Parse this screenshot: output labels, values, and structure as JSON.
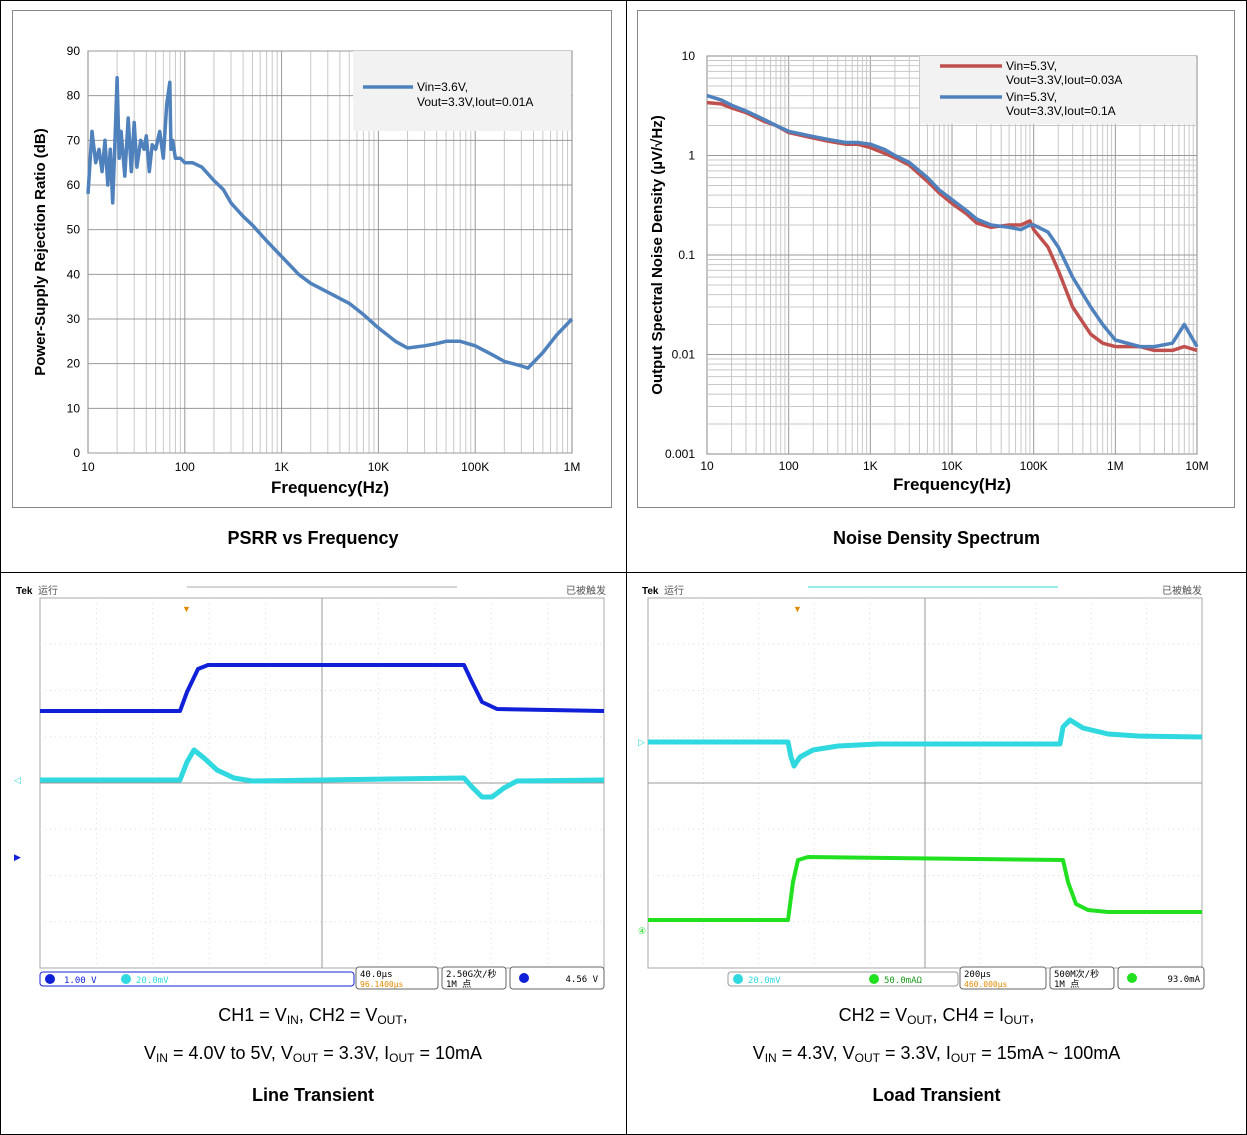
{
  "psrr": {
    "caption": "PSRR vs Frequency",
    "chart_data": {
      "type": "line",
      "ylabel": "Power-Supply Rejection Ratio (dB)",
      "xlabel": "Frequency(Hz)",
      "xscale": "log",
      "xlim": [
        10,
        1000000
      ],
      "ylim": [
        0,
        90
      ],
      "yticks": [
        "0",
        "10",
        "20",
        "30",
        "40",
        "50",
        "60",
        "70",
        "80",
        "90"
      ],
      "xticks": [
        "10",
        "100",
        "1K",
        "10K",
        "100K",
        "1M"
      ],
      "grid": true,
      "legend_position": "top-right",
      "series": [
        {
          "name": "Vin=3.6V, Vout=3.3V,Iout=0.01A",
          "legend_line1": "Vin=3.6V,",
          "legend_line2": "Vout=3.3V,Iout=0.01A",
          "color": "#4f81bd",
          "x": [
            10,
            11,
            12,
            13,
            14,
            15,
            16,
            17,
            18,
            19,
            20,
            21,
            22,
            24,
            26,
            28,
            30,
            32,
            35,
            38,
            40,
            43,
            46,
            50,
            55,
            60,
            65,
            70,
            72,
            75,
            80,
            90,
            100,
            120,
            150,
            200,
            250,
            300,
            400,
            500,
            700,
            1000,
            1500,
            2000,
            3000,
            5000,
            7000,
            10000,
            15000,
            20000,
            30000,
            40000,
            50000,
            70000,
            100000,
            150000,
            200000,
            300000,
            350000,
            500000,
            700000,
            1000000
          ],
          "y": [
            58,
            72,
            65,
            68,
            63,
            70,
            60,
            68,
            56,
            70,
            84,
            66,
            72,
            62,
            75,
            63,
            74,
            64,
            70,
            68,
            71,
            63,
            69,
            68,
            72,
            66,
            78,
            83,
            68,
            70,
            66,
            66,
            65,
            65,
            64,
            61,
            59,
            56,
            53,
            51,
            47.5,
            44,
            40,
            38,
            36,
            33.5,
            31,
            28,
            25,
            23.5,
            24,
            24.5,
            25,
            25,
            24,
            22,
            20.5,
            19.5,
            19,
            22.5,
            26.5,
            30
          ]
        }
      ]
    }
  },
  "noise": {
    "caption": "Noise Density Spectrum",
    "chart_data": {
      "type": "line",
      "ylabel": "Output Spectral Noise Density (µV/√Hz)",
      "xlabel": "Frequency(Hz)",
      "xscale": "log",
      "yscale": "log",
      "xlim": [
        10,
        10000000
      ],
      "ylim": [
        0.001,
        10
      ],
      "yticks": [
        "0.001",
        "0.01",
        "0.1",
        "1",
        "10"
      ],
      "xticks": [
        "10",
        "100",
        "1K",
        "10K",
        "100K",
        "1M",
        "10M"
      ],
      "grid": true,
      "legend_position": "top-right",
      "series": [
        {
          "name": "Vin=5.3V, Vout=3.3V,Iout=0.03A",
          "legend_line1": "Vin=5.3V,",
          "legend_line2": "Vout=3.3V,Iout=0.03A",
          "color": "#c0504d",
          "x": [
            10,
            15,
            20,
            30,
            50,
            70,
            100,
            200,
            300,
            500,
            700,
            1000,
            1500,
            2000,
            3000,
            5000,
            7000,
            10000,
            15000,
            20000,
            30000,
            50000,
            70000,
            90000,
            100000,
            150000,
            200000,
            300000,
            500000,
            700000,
            1000000,
            2000000,
            3000000,
            5000000,
            7000000,
            10000000
          ],
          "y": [
            3.4,
            3.3,
            3.0,
            2.7,
            2.2,
            2.0,
            1.7,
            1.5,
            1.4,
            1.3,
            1.3,
            1.2,
            1.05,
            0.95,
            0.8,
            0.55,
            0.42,
            0.33,
            0.26,
            0.21,
            0.19,
            0.2,
            0.2,
            0.22,
            0.18,
            0.12,
            0.07,
            0.03,
            0.016,
            0.013,
            0.012,
            0.012,
            0.011,
            0.011,
            0.012,
            0.011
          ]
        },
        {
          "name": "Vin=5.3V, Vout=3.3V,Iout=0.1A",
          "legend_line1": "Vin=5.3V,",
          "legend_line2": "Vout=3.3V,Iout=0.1A",
          "color": "#4f81bd",
          "x": [
            10,
            15,
            20,
            30,
            50,
            70,
            100,
            200,
            300,
            500,
            700,
            1000,
            1500,
            2000,
            3000,
            5000,
            7000,
            10000,
            15000,
            20000,
            30000,
            50000,
            70000,
            90000,
            100000,
            150000,
            200000,
            300000,
            500000,
            700000,
            1000000,
            2000000,
            3000000,
            5000000,
            7000000,
            10000000
          ],
          "y": [
            4.0,
            3.6,
            3.2,
            2.8,
            2.3,
            2.0,
            1.75,
            1.55,
            1.45,
            1.35,
            1.35,
            1.3,
            1.15,
            1.0,
            0.85,
            0.6,
            0.45,
            0.36,
            0.28,
            0.23,
            0.2,
            0.19,
            0.18,
            0.2,
            0.2,
            0.17,
            0.12,
            0.06,
            0.03,
            0.02,
            0.014,
            0.012,
            0.012,
            0.013,
            0.02,
            0.012
          ]
        }
      ]
    }
  },
  "line_transient": {
    "header_left_brand": "Tek",
    "header_left_status": "运行",
    "header_right": "已被触发",
    "ch1_setting": "1.00 V",
    "ch2_setting": "20.0mV",
    "timebase": "40.0µs",
    "trigger_pos": "96.1400µs",
    "sample_rate": "2.50G次/秒",
    "record": "1M 点",
    "trigger_level": "4.56 V",
    "caption_line1": "CH1 = V",
    "caption_line1_sub1": "IN",
    "caption_line1_mid": ", CH2 = V",
    "caption_line1_sub2": "OUT",
    "caption_line1_end": ",",
    "caption_line2": "V",
    "caption_line2_parts": [
      "IN",
      " = 4.0V to 5V, V",
      "OUT",
      " = 3.3V, I",
      "OUT",
      " = 10mA"
    ],
    "caption_title": "Line Transient",
    "colors": {
      "ch1": "#1020d8",
      "ch2": "#30d8e0"
    }
  },
  "load_transient": {
    "header_left_brand": "Tek",
    "header_left_status": "运行",
    "header_right": "已被触发",
    "ch2_setting": "20.0mV",
    "ch4_setting": "50.0mAΩ",
    "timebase": "200µs",
    "trigger_pos": "460.000µs",
    "sample_rate": "500M次/秒",
    "record": "1M 点",
    "trigger_level": "93.0mA",
    "caption_line1": "CH2 = V",
    "caption_line1_sub1": "OUT",
    "caption_line1_mid": ", CH4 = I",
    "caption_line1_sub2": "OUT",
    "caption_line1_end": ",",
    "caption_line2": "V",
    "caption_line2_parts": [
      "IN",
      " = 4.3V, V",
      "OUT",
      " = 3.3V, I",
      "OUT",
      " = 15mA ~ 100mA"
    ],
    "caption_title": "Load Transient",
    "colors": {
      "ch2": "#30d8e0",
      "ch4": "#20e020"
    }
  }
}
